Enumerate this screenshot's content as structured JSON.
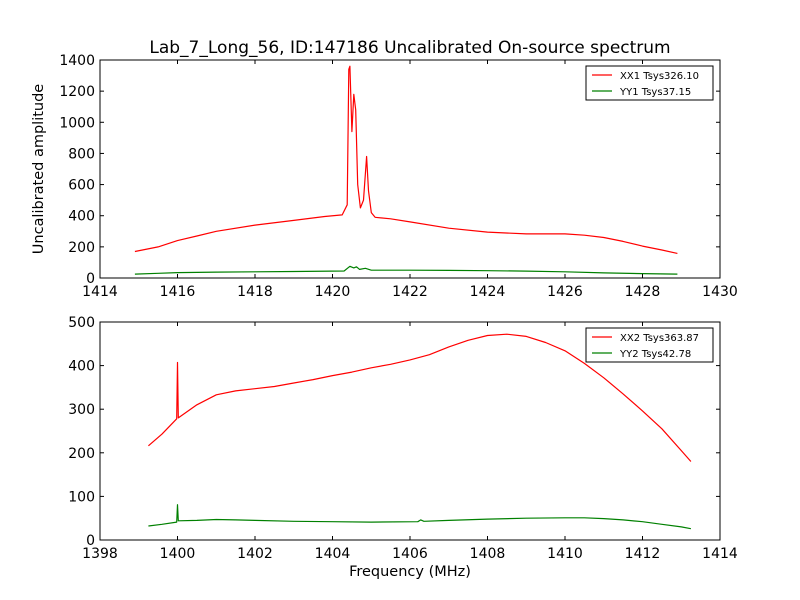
{
  "title": "Lab_7_Long_56, ID:147186 Uncalibrated On-source spectrum",
  "ylabel": "Uncalibrated amplitude",
  "xlabel": "Frequency (MHz)",
  "colors": {
    "red": "#ff0000",
    "green": "#008000"
  },
  "chart_data": [
    {
      "type": "line",
      "xlim": [
        1414,
        1430
      ],
      "ylim": [
        0,
        1400
      ],
      "xticks": [
        1414,
        1416,
        1418,
        1420,
        1422,
        1424,
        1426,
        1428,
        1430
      ],
      "yticks": [
        0,
        200,
        400,
        600,
        800,
        1000,
        1200,
        1400
      ],
      "legend_position": "top-right",
      "series": [
        {
          "name": "XX1 Tsys326.10",
          "color": "#ff0000",
          "points": [
            [
              1414.9,
              170
            ],
            [
              1415.5,
              200
            ],
            [
              1416,
              240
            ],
            [
              1416.5,
              270
            ],
            [
              1417,
              300
            ],
            [
              1418,
              340
            ],
            [
              1419,
              370
            ],
            [
              1419.8,
              395
            ],
            [
              1420.25,
              405
            ],
            [
              1420.38,
              470
            ],
            [
              1420.42,
              1340
            ],
            [
              1420.45,
              1360
            ],
            [
              1420.5,
              940
            ],
            [
              1420.55,
              1180
            ],
            [
              1420.6,
              1080
            ],
            [
              1420.65,
              600
            ],
            [
              1420.72,
              450
            ],
            [
              1420.8,
              500
            ],
            [
              1420.88,
              780
            ],
            [
              1420.93,
              560
            ],
            [
              1421.0,
              420
            ],
            [
              1421.1,
              390
            ],
            [
              1421.5,
              380
            ],
            [
              1422,
              360
            ],
            [
              1423,
              320
            ],
            [
              1424,
              295
            ],
            [
              1425,
              283
            ],
            [
              1426,
              283
            ],
            [
              1426.5,
              275
            ],
            [
              1427,
              260
            ],
            [
              1427.5,
              235
            ],
            [
              1428,
              205
            ],
            [
              1428.5,
              180
            ],
            [
              1428.9,
              158
            ]
          ]
        },
        {
          "name": "YY1 Tsys37.15",
          "color": "#008000",
          "points": [
            [
              1414.9,
              25
            ],
            [
              1415.5,
              30
            ],
            [
              1416,
              35
            ],
            [
              1417,
              38
            ],
            [
              1418,
              40
            ],
            [
              1419,
              42
            ],
            [
              1420.3,
              45
            ],
            [
              1420.45,
              75
            ],
            [
              1420.55,
              65
            ],
            [
              1420.62,
              72
            ],
            [
              1420.7,
              55
            ],
            [
              1420.85,
              62
            ],
            [
              1421.0,
              50
            ],
            [
              1422,
              50
            ],
            [
              1423,
              49
            ],
            [
              1424,
              47
            ],
            [
              1425,
              44
            ],
            [
              1426,
              40
            ],
            [
              1427,
              33
            ],
            [
              1428,
              28
            ],
            [
              1428.9,
              25
            ]
          ]
        }
      ]
    },
    {
      "type": "line",
      "xlim": [
        1398,
        1414
      ],
      "ylim": [
        0,
        500
      ],
      "xticks": [
        1398,
        1400,
        1402,
        1404,
        1406,
        1408,
        1410,
        1412,
        1414
      ],
      "yticks": [
        0,
        100,
        200,
        300,
        400,
        500
      ],
      "legend_position": "top-right",
      "series": [
        {
          "name": "XX2 Tsys363.87",
          "color": "#ff0000",
          "points": [
            [
              1399.25,
              216
            ],
            [
              1399.6,
              243
            ],
            [
              1399.98,
              278
            ],
            [
              1400.0,
              407
            ],
            [
              1400.02,
              280
            ],
            [
              1400.5,
              310
            ],
            [
              1401,
              333
            ],
            [
              1401.5,
              342
            ],
            [
              1402,
              347
            ],
            [
              1402.5,
              352
            ],
            [
              1403,
              360
            ],
            [
              1403.5,
              368
            ],
            [
              1404,
              377
            ],
            [
              1404.5,
              385
            ],
            [
              1405,
              395
            ],
            [
              1405.5,
              403
            ],
            [
              1406,
              413
            ],
            [
              1406.5,
              425
            ],
            [
              1407,
              443
            ],
            [
              1407.5,
              458
            ],
            [
              1408,
              469
            ],
            [
              1408.5,
              472
            ],
            [
              1409,
              467
            ],
            [
              1409.5,
              453
            ],
            [
              1410,
              434
            ],
            [
              1410.5,
              405
            ],
            [
              1411,
              372
            ],
            [
              1411.5,
              335
            ],
            [
              1412,
              296
            ],
            [
              1412.5,
              255
            ],
            [
              1413,
              205
            ],
            [
              1413.25,
              180
            ]
          ]
        },
        {
          "name": "YY2 Tsys42.78",
          "color": "#008000",
          "points": [
            [
              1399.25,
              32
            ],
            [
              1399.6,
              36
            ],
            [
              1399.98,
              41
            ],
            [
              1400.0,
              81
            ],
            [
              1400.02,
              44
            ],
            [
              1400.5,
              45
            ],
            [
              1401,
              47
            ],
            [
              1401.5,
              46
            ],
            [
              1402,
              45
            ],
            [
              1403,
              43
            ],
            [
              1404,
              42
            ],
            [
              1405,
              41
            ],
            [
              1406.2,
              42
            ],
            [
              1406.28,
              46
            ],
            [
              1406.36,
              43
            ],
            [
              1407,
              45
            ],
            [
              1408,
              48
            ],
            [
              1409,
              50
            ],
            [
              1410,
              51
            ],
            [
              1410.5,
              51
            ],
            [
              1411,
              49
            ],
            [
              1411.5,
              46
            ],
            [
              1412,
              42
            ],
            [
              1412.5,
              36
            ],
            [
              1413,
              30
            ],
            [
              1413.25,
              26
            ]
          ]
        }
      ]
    }
  ]
}
